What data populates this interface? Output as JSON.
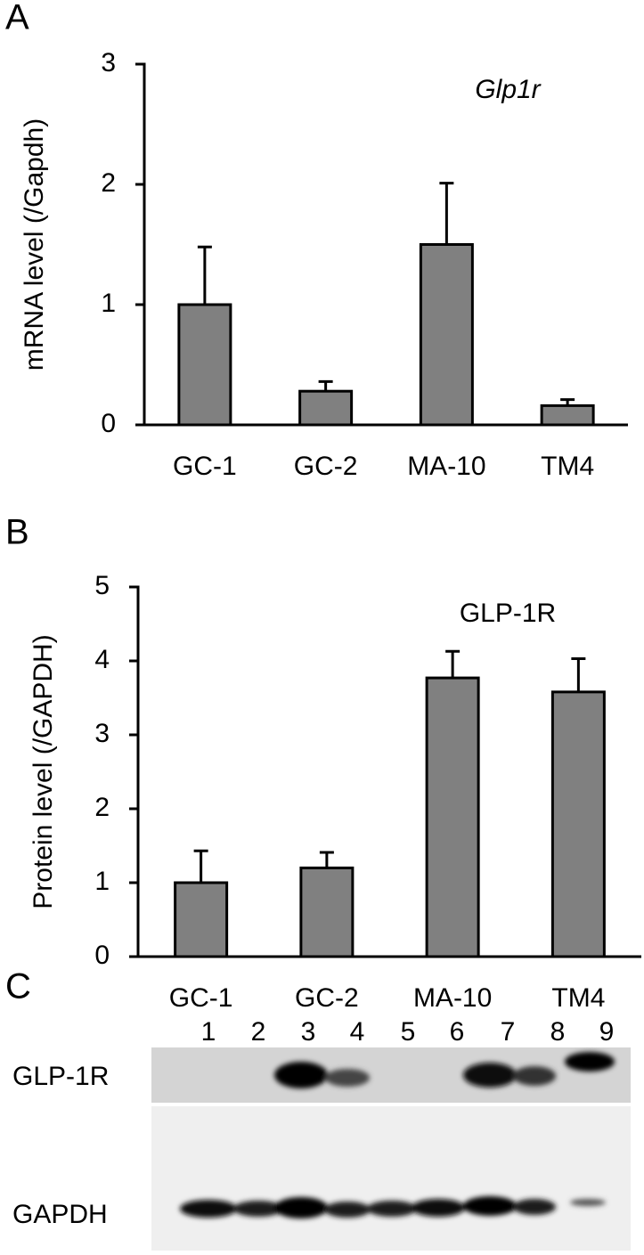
{
  "chart_data": [
    {
      "type": "bar",
      "panel": "A",
      "title": "Glp1r",
      "ylabel": "mRNA level (/Gapdh)",
      "categories": [
        "GC-1",
        "GC-2",
        "MA-10",
        "TM4"
      ],
      "values": [
        1.0,
        0.28,
        1.5,
        0.16
      ],
      "errors": [
        0.48,
        0.08,
        0.51,
        0.05
      ],
      "color": "#808080",
      "ylim": [
        0,
        3
      ],
      "yticks": [
        0,
        1,
        2,
        3
      ]
    },
    {
      "type": "bar",
      "panel": "B",
      "title": "GLP-1R",
      "ylabel": "Protein level (/GAPDH)",
      "categories": [
        "GC-1",
        "GC-2",
        "MA-10",
        "TM4"
      ],
      "values": [
        1.0,
        1.2,
        3.77,
        3.58
      ],
      "errors": [
        0.43,
        0.21,
        0.36,
        0.45
      ],
      "color": "#808080",
      "ylim": [
        0,
        5
      ],
      "yticks": [
        0,
        1,
        2,
        3,
        4,
        5
      ]
    }
  ],
  "blot": {
    "panel": "C",
    "lanes": [
      "1",
      "2",
      "3",
      "4",
      "5",
      "6",
      "7",
      "8",
      "9"
    ],
    "rows": [
      "GLP-1R",
      "GAPDH"
    ]
  }
}
